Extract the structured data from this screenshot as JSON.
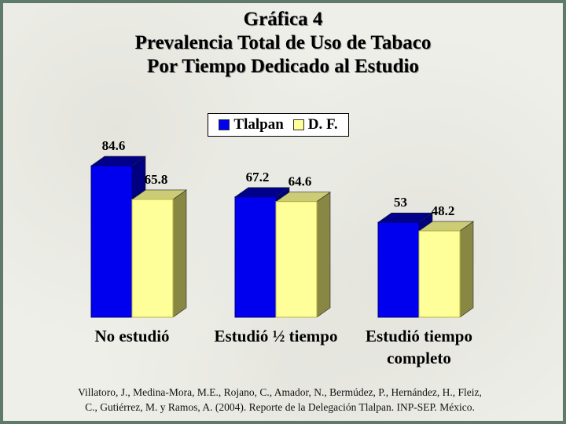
{
  "chart_data": {
    "type": "bar",
    "title_lines": [
      "Gráfica 4",
      "Prevalencia Total de Uso de Tabaco",
      "Por Tiempo Dedicado al Estudio"
    ],
    "categories": [
      [
        "No estudió"
      ],
      [
        "Estudió ½ tiempo"
      ],
      [
        "Estudió tiempo",
        "completo"
      ]
    ],
    "series": [
      {
        "name": "Tlalpan",
        "values": [
          84.6,
          67.2,
          53
        ],
        "labels": [
          "84.6",
          "67.2",
          "53"
        ],
        "color": "#0000ee",
        "top": "#00008a",
        "side": "#000080"
      },
      {
        "name": "D. F.",
        "values": [
          65.8,
          64.6,
          48.2
        ],
        "labels": [
          "65.8",
          "64.6",
          "48.2"
        ],
        "color": "#ffff99",
        "top": "#cccc77",
        "side": "#888844"
      }
    ],
    "ylim": [
      0,
      100
    ],
    "grid": false,
    "legend_position": "top-center"
  },
  "footer": {
    "line1": "Villatoro, J., Medina-Mora, M.E., Rojano, C., Amador, N., Bermúdez, P., Hernández, H., Fleiz,",
    "line2": "C., Gutiérrez, M. y Ramos, A. (2004). Reporte de la Delegación Tlalpan. INP-SEP. México."
  }
}
